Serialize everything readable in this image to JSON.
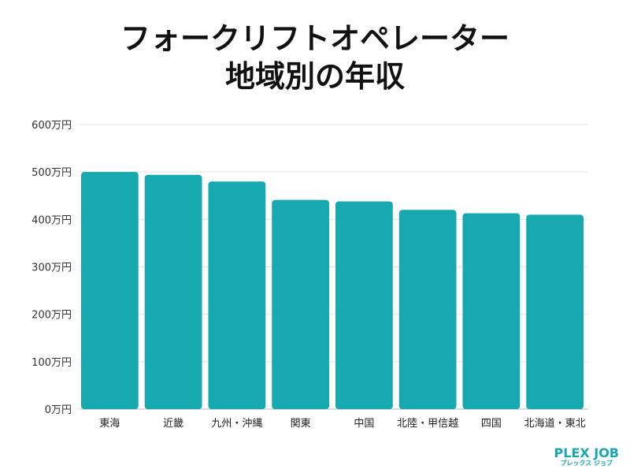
{
  "title_lines": [
    "フォークリフトオペレーター",
    "地域別の年収"
  ],
  "chart_data": {
    "type": "bar",
    "title": "フォークリフトオペレーター 地域別の年収",
    "categories": [
      "東海",
      "近畿",
      "九州・沖縄",
      "関東",
      "中国",
      "北陸・甲信越",
      "四国",
      "北海道・東北"
    ],
    "values": [
      500,
      494,
      480,
      441,
      438,
      420,
      413,
      410
    ],
    "unit": "万円",
    "ylim": [
      0,
      600
    ],
    "yticks": [
      "0万円",
      "100万円",
      "200万円",
      "300万円",
      "400万円",
      "500万円",
      "600万円"
    ],
    "grid": true,
    "bar_color": "#17a9b0"
  },
  "logo": {
    "main": "PLEX JOB",
    "sub": "プレックス ジョブ"
  }
}
